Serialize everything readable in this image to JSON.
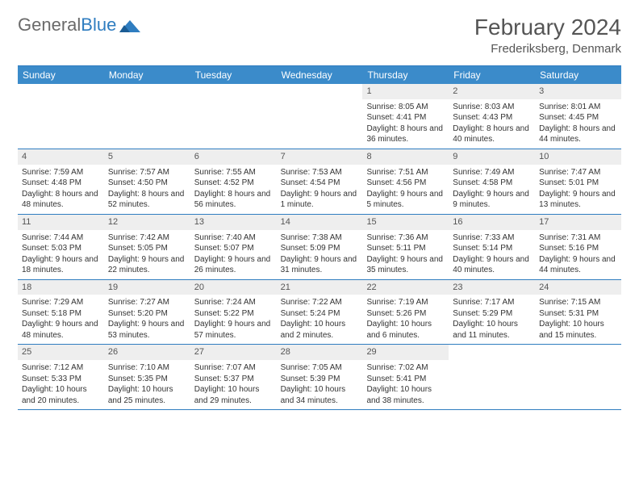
{
  "logo": {
    "text1": "General",
    "text2": "Blue"
  },
  "title": "February 2024",
  "location": "Frederiksberg, Denmark",
  "colors": {
    "header_bg": "#3b8bca",
    "header_text": "#ffffff",
    "border": "#2f7dc0",
    "daynum_bg": "#eeeeee",
    "body_text": "#333333",
    "logo_gray": "#6a6a6a",
    "logo_blue": "#2f7dc0"
  },
  "day_names": [
    "Sunday",
    "Monday",
    "Tuesday",
    "Wednesday",
    "Thursday",
    "Friday",
    "Saturday"
  ],
  "weeks": [
    [
      {
        "n": "",
        "sr": "",
        "ss": "",
        "dl": ""
      },
      {
        "n": "",
        "sr": "",
        "ss": "",
        "dl": ""
      },
      {
        "n": "",
        "sr": "",
        "ss": "",
        "dl": ""
      },
      {
        "n": "",
        "sr": "",
        "ss": "",
        "dl": ""
      },
      {
        "n": "1",
        "sr": "Sunrise: 8:05 AM",
        "ss": "Sunset: 4:41 PM",
        "dl": "Daylight: 8 hours and 36 minutes."
      },
      {
        "n": "2",
        "sr": "Sunrise: 8:03 AM",
        "ss": "Sunset: 4:43 PM",
        "dl": "Daylight: 8 hours and 40 minutes."
      },
      {
        "n": "3",
        "sr": "Sunrise: 8:01 AM",
        "ss": "Sunset: 4:45 PM",
        "dl": "Daylight: 8 hours and 44 minutes."
      }
    ],
    [
      {
        "n": "4",
        "sr": "Sunrise: 7:59 AM",
        "ss": "Sunset: 4:48 PM",
        "dl": "Daylight: 8 hours and 48 minutes."
      },
      {
        "n": "5",
        "sr": "Sunrise: 7:57 AM",
        "ss": "Sunset: 4:50 PM",
        "dl": "Daylight: 8 hours and 52 minutes."
      },
      {
        "n": "6",
        "sr": "Sunrise: 7:55 AM",
        "ss": "Sunset: 4:52 PM",
        "dl": "Daylight: 8 hours and 56 minutes."
      },
      {
        "n": "7",
        "sr": "Sunrise: 7:53 AM",
        "ss": "Sunset: 4:54 PM",
        "dl": "Daylight: 9 hours and 1 minute."
      },
      {
        "n": "8",
        "sr": "Sunrise: 7:51 AM",
        "ss": "Sunset: 4:56 PM",
        "dl": "Daylight: 9 hours and 5 minutes."
      },
      {
        "n": "9",
        "sr": "Sunrise: 7:49 AM",
        "ss": "Sunset: 4:58 PM",
        "dl": "Daylight: 9 hours and 9 minutes."
      },
      {
        "n": "10",
        "sr": "Sunrise: 7:47 AM",
        "ss": "Sunset: 5:01 PM",
        "dl": "Daylight: 9 hours and 13 minutes."
      }
    ],
    [
      {
        "n": "11",
        "sr": "Sunrise: 7:44 AM",
        "ss": "Sunset: 5:03 PM",
        "dl": "Daylight: 9 hours and 18 minutes."
      },
      {
        "n": "12",
        "sr": "Sunrise: 7:42 AM",
        "ss": "Sunset: 5:05 PM",
        "dl": "Daylight: 9 hours and 22 minutes."
      },
      {
        "n": "13",
        "sr": "Sunrise: 7:40 AM",
        "ss": "Sunset: 5:07 PM",
        "dl": "Daylight: 9 hours and 26 minutes."
      },
      {
        "n": "14",
        "sr": "Sunrise: 7:38 AM",
        "ss": "Sunset: 5:09 PM",
        "dl": "Daylight: 9 hours and 31 minutes."
      },
      {
        "n": "15",
        "sr": "Sunrise: 7:36 AM",
        "ss": "Sunset: 5:11 PM",
        "dl": "Daylight: 9 hours and 35 minutes."
      },
      {
        "n": "16",
        "sr": "Sunrise: 7:33 AM",
        "ss": "Sunset: 5:14 PM",
        "dl": "Daylight: 9 hours and 40 minutes."
      },
      {
        "n": "17",
        "sr": "Sunrise: 7:31 AM",
        "ss": "Sunset: 5:16 PM",
        "dl": "Daylight: 9 hours and 44 minutes."
      }
    ],
    [
      {
        "n": "18",
        "sr": "Sunrise: 7:29 AM",
        "ss": "Sunset: 5:18 PM",
        "dl": "Daylight: 9 hours and 48 minutes."
      },
      {
        "n": "19",
        "sr": "Sunrise: 7:27 AM",
        "ss": "Sunset: 5:20 PM",
        "dl": "Daylight: 9 hours and 53 minutes."
      },
      {
        "n": "20",
        "sr": "Sunrise: 7:24 AM",
        "ss": "Sunset: 5:22 PM",
        "dl": "Daylight: 9 hours and 57 minutes."
      },
      {
        "n": "21",
        "sr": "Sunrise: 7:22 AM",
        "ss": "Sunset: 5:24 PM",
        "dl": "Daylight: 10 hours and 2 minutes."
      },
      {
        "n": "22",
        "sr": "Sunrise: 7:19 AM",
        "ss": "Sunset: 5:26 PM",
        "dl": "Daylight: 10 hours and 6 minutes."
      },
      {
        "n": "23",
        "sr": "Sunrise: 7:17 AM",
        "ss": "Sunset: 5:29 PM",
        "dl": "Daylight: 10 hours and 11 minutes."
      },
      {
        "n": "24",
        "sr": "Sunrise: 7:15 AM",
        "ss": "Sunset: 5:31 PM",
        "dl": "Daylight: 10 hours and 15 minutes."
      }
    ],
    [
      {
        "n": "25",
        "sr": "Sunrise: 7:12 AM",
        "ss": "Sunset: 5:33 PM",
        "dl": "Daylight: 10 hours and 20 minutes."
      },
      {
        "n": "26",
        "sr": "Sunrise: 7:10 AM",
        "ss": "Sunset: 5:35 PM",
        "dl": "Daylight: 10 hours and 25 minutes."
      },
      {
        "n": "27",
        "sr": "Sunrise: 7:07 AM",
        "ss": "Sunset: 5:37 PM",
        "dl": "Daylight: 10 hours and 29 minutes."
      },
      {
        "n": "28",
        "sr": "Sunrise: 7:05 AM",
        "ss": "Sunset: 5:39 PM",
        "dl": "Daylight: 10 hours and 34 minutes."
      },
      {
        "n": "29",
        "sr": "Sunrise: 7:02 AM",
        "ss": "Sunset: 5:41 PM",
        "dl": "Daylight: 10 hours and 38 minutes."
      },
      {
        "n": "",
        "sr": "",
        "ss": "",
        "dl": ""
      },
      {
        "n": "",
        "sr": "",
        "ss": "",
        "dl": ""
      }
    ]
  ]
}
